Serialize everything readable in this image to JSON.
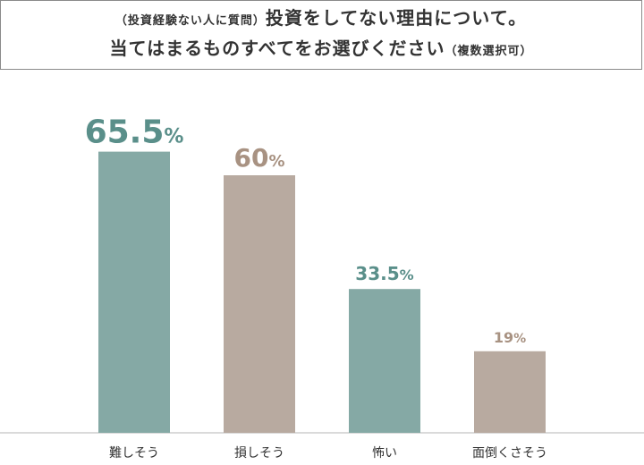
{
  "title": {
    "line1_prefix": "（投資経験ない人に質問）",
    "line1_main": "投資をしてない理由について。",
    "line2_main": "当てはまるものすべてをお選びください",
    "line2_suffix": "（複数選択可）"
  },
  "chart_data": {
    "type": "bar",
    "categories": [
      "難しそう",
      "損しそう",
      "怖い",
      "面倒くさそう"
    ],
    "values": [
      65.5,
      60,
      33.5,
      19
    ],
    "value_unit": "%",
    "ylim": [
      0,
      100
    ],
    "grid": false,
    "colors": [
      "#85a9a5",
      "#b8aaa0",
      "#85a9a5",
      "#b8aaa0"
    ],
    "label_colors": [
      "#5a8f8a",
      "#a89282",
      "#5a8f8a",
      "#a89282"
    ]
  }
}
